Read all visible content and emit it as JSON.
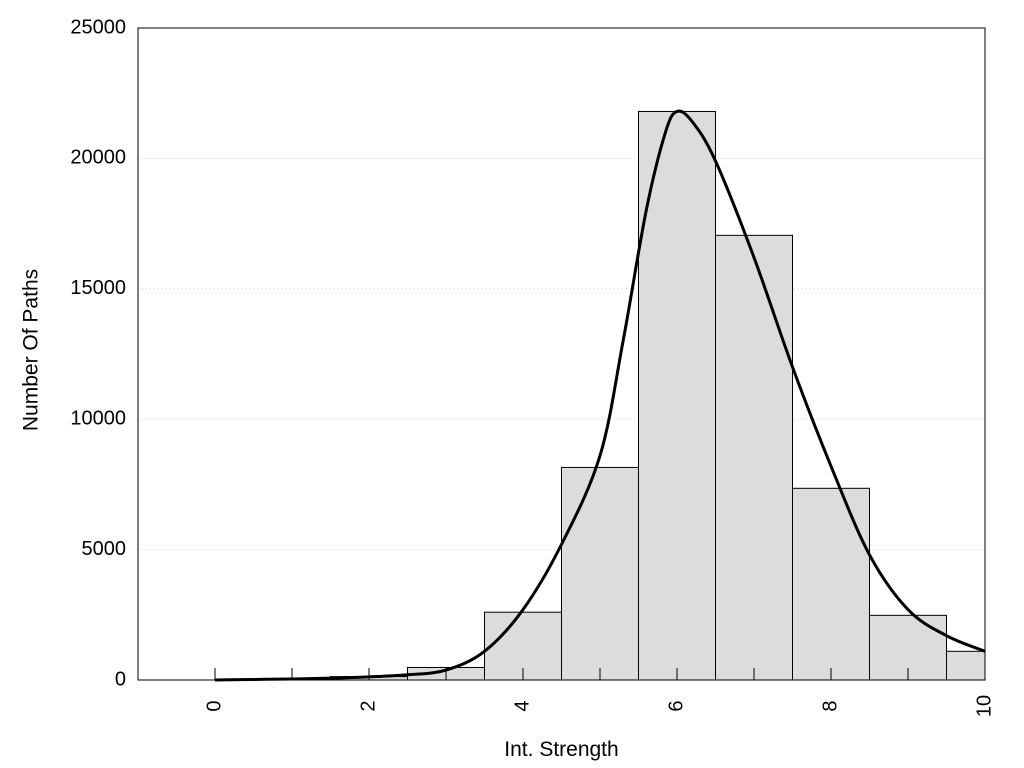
{
  "chart_data": {
    "type": "bar",
    "xlabel": "Int. Strength",
    "ylabel": "Number Of Paths",
    "xlim": [
      -1,
      10
    ],
    "ylim": [
      0,
      25000
    ],
    "x_ticks": [
      "0",
      "2",
      "4",
      "6",
      "8",
      "10"
    ],
    "y_ticks": [
      "0",
      "5000",
      "10000",
      "15000",
      "20000",
      "25000"
    ],
    "grid": "horizontal dotted",
    "bar_color": "#dcdcdc",
    "bar_edge_color": "#000000",
    "bars": [
      {
        "x": 0,
        "value": 0
      },
      {
        "x": 1,
        "value": 20
      },
      {
        "x": 2,
        "value": 130
      },
      {
        "x": 3,
        "value": 480
      },
      {
        "x": 4,
        "value": 2600
      },
      {
        "x": 5,
        "value": 8150
      },
      {
        "x": 6,
        "value": 21800
      },
      {
        "x": 7,
        "value": 17050
      },
      {
        "x": 8,
        "value": 7350
      },
      {
        "x": 9,
        "value": 2480
      },
      {
        "x": 10,
        "value": 1100
      }
    ],
    "density_curve": {
      "color": "#000000",
      "points": [
        [
          0,
          0
        ],
        [
          0.5,
          20
        ],
        [
          1,
          40
        ],
        [
          1.5,
          70
        ],
        [
          2,
          120
        ],
        [
          2.5,
          200
        ],
        [
          3,
          380
        ],
        [
          3.5,
          1100
        ],
        [
          4,
          2700
        ],
        [
          4.5,
          5200
        ],
        [
          5,
          8600
        ],
        [
          5.3,
          13000
        ],
        [
          5.6,
          18000
        ],
        [
          5.85,
          21000
        ],
        [
          6,
          21800
        ],
        [
          6.2,
          21400
        ],
        [
          6.5,
          19900
        ],
        [
          7,
          16200
        ],
        [
          7.5,
          12000
        ],
        [
          8,
          8200
        ],
        [
          8.5,
          4800
        ],
        [
          9,
          2700
        ],
        [
          9.5,
          1700
        ],
        [
          10,
          1100
        ]
      ]
    }
  }
}
